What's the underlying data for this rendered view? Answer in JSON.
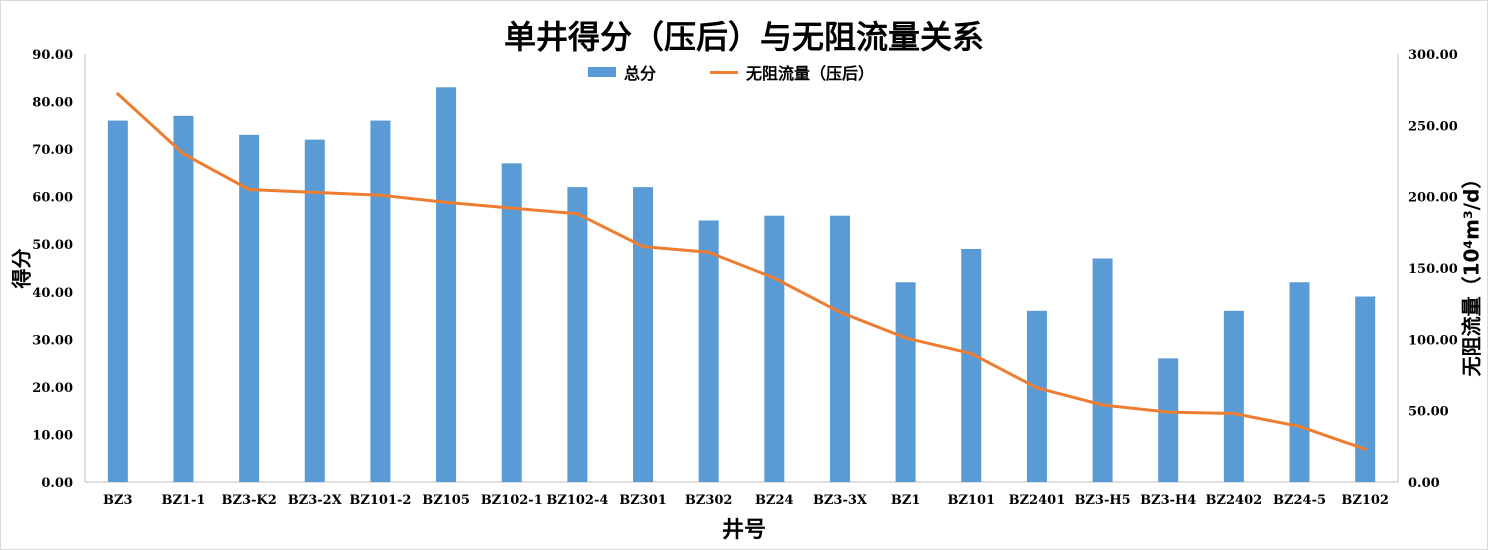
{
  "chart_data": {
    "type": "bar",
    "title": "单井得分（压后）与无阻流量关系",
    "xlabel": "井号",
    "ylabel": "得分",
    "y2label": "无阻流量（10⁴m³/d）",
    "categories": [
      "BZ3",
      "BZ1-1",
      "BZ3-K2",
      "BZ3-2X",
      "BZ101-2",
      "BZ105",
      "BZ102-1",
      "BZ102-4",
      "BZ301",
      "BZ302",
      "BZ24",
      "BZ3-3X",
      "BZ1",
      "BZ101",
      "BZ2401",
      "BZ3-H5",
      "BZ3-H4",
      "BZ2402",
      "BZ24-5",
      "BZ102"
    ],
    "series": [
      {
        "name": "总分",
        "type": "bar",
        "axis": "left",
        "color": "#5b9bd5",
        "values": [
          76,
          77,
          73,
          72,
          76,
          83,
          67,
          62,
          62,
          55,
          56,
          56,
          42,
          49,
          36,
          47,
          26,
          36,
          42,
          39
        ]
      },
      {
        "name": "无阻流量（压后）",
        "type": "line",
        "axis": "right",
        "color": "#ed7d31",
        "values": [
          272,
          230,
          205,
          203,
          201,
          196,
          192,
          188,
          165,
          161,
          143,
          119,
          101,
          90,
          66,
          54,
          49,
          48,
          39,
          23
        ]
      }
    ],
    "ylim": [
      0,
      90
    ],
    "y2lim": [
      0,
      300
    ],
    "yticks": [
      "0.00",
      "10.00",
      "20.00",
      "30.00",
      "40.00",
      "50.00",
      "60.00",
      "70.00",
      "80.00",
      "90.00"
    ],
    "y2ticks": [
      "0.00",
      "50.00",
      "100.00",
      "150.00",
      "200.00",
      "250.00",
      "300.00"
    ],
    "grid": false,
    "legend_position": "top"
  }
}
